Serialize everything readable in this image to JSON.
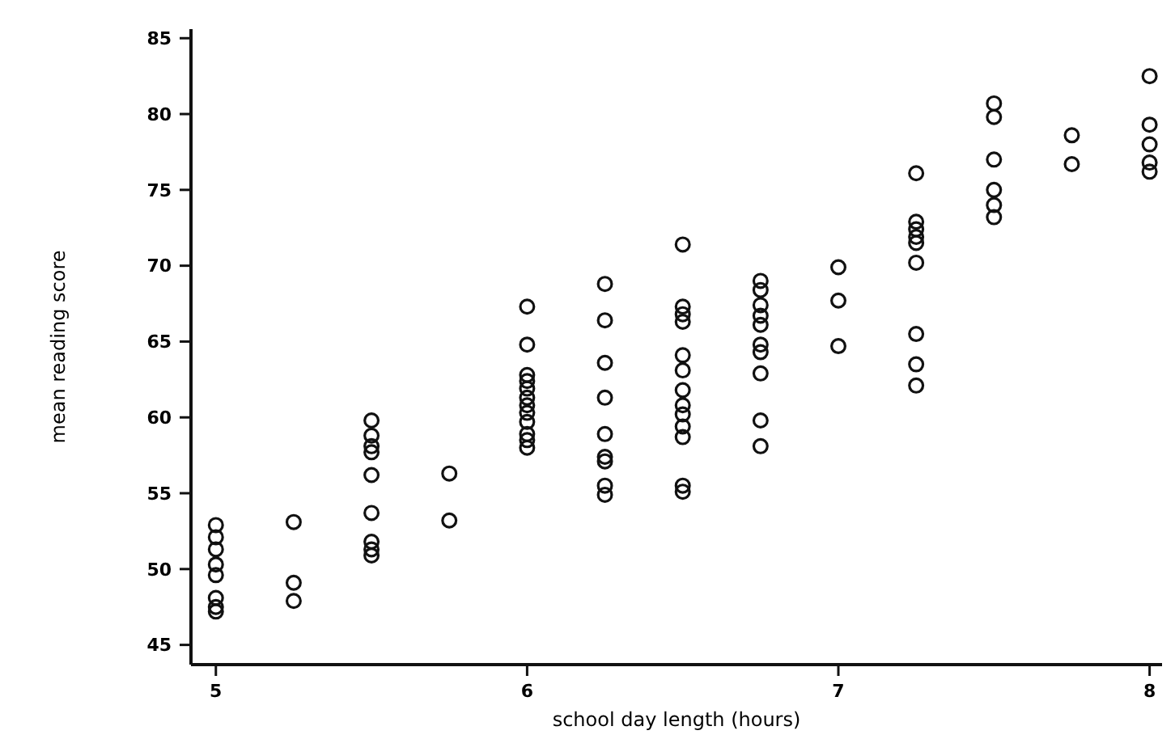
{
  "chart_data": {
    "type": "scatter",
    "xlabel": "school day length (hours)",
    "ylabel": "mean reading score",
    "xlim": [
      4.92,
      8.04
    ],
    "ylim": [
      43.7,
      85.6
    ],
    "xticks": [
      5,
      6,
      7,
      8
    ],
    "yticks": [
      45,
      50,
      55,
      60,
      65,
      70,
      75,
      80,
      85
    ],
    "grid": false,
    "marker": "circle",
    "series": [
      {
        "color": "#111111",
        "x": [
          5,
          5,
          5,
          5,
          5,
          5,
          5,
          5,
          5.25,
          5.25,
          5.25,
          5.5,
          5.5,
          5.5,
          5.5,
          5.5,
          5.5,
          5.5,
          5.5,
          5.5,
          5.75,
          5.75,
          6,
          6,
          6,
          6,
          6,
          6,
          6,
          6,
          6,
          6,
          6,
          6,
          6.25,
          6.25,
          6.25,
          6.25,
          6.25,
          6.25,
          6.25,
          6.25,
          6.25,
          6.5,
          6.5,
          6.5,
          6.5,
          6.5,
          6.5,
          6.5,
          6.5,
          6.5,
          6.5,
          6.5,
          6.5,
          6.5,
          6.75,
          6.75,
          6.75,
          6.75,
          6.75,
          6.75,
          6.75,
          6.75,
          6.75,
          6.75,
          7,
          7,
          7,
          7.25,
          7.25,
          7.25,
          7.25,
          7.25,
          7.25,
          7.25,
          7.25,
          7.25,
          7.5,
          7.5,
          7.5,
          7.5,
          7.5,
          7.5,
          7.75,
          7.75,
          8,
          8,
          8,
          8,
          8
        ],
        "values": [
          52.9,
          52.1,
          51.3,
          50.3,
          49.6,
          48.1,
          47.5,
          47.2,
          53.1,
          49.1,
          47.9,
          59.8,
          58.8,
          58.1,
          57.7,
          56.2,
          53.7,
          51.8,
          51.3,
          50.9,
          56.3,
          53.2,
          67.3,
          64.8,
          62.8,
          62.4,
          61.9,
          61.3,
          60.8,
          60.3,
          59.7,
          58.9,
          58.5,
          58.0,
          68.8,
          66.4,
          63.6,
          61.3,
          58.9,
          57.4,
          57.1,
          55.5,
          54.9,
          71.4,
          67.3,
          66.8,
          66.3,
          64.1,
          63.1,
          61.8,
          60.8,
          60.2,
          59.4,
          58.7,
          55.5,
          55.1,
          69.0,
          68.4,
          67.4,
          66.7,
          66.1,
          64.8,
          64.3,
          62.9,
          59.8,
          58.1,
          69.9,
          67.7,
          64.7,
          76.1,
          72.9,
          72.4,
          71.9,
          71.5,
          70.2,
          65.5,
          63.5,
          62.1,
          80.7,
          79.8,
          77.0,
          75.0,
          74.0,
          73.2,
          78.6,
          76.7,
          82.5,
          79.3,
          78.0,
          76.8,
          76.2
        ]
      }
    ]
  }
}
